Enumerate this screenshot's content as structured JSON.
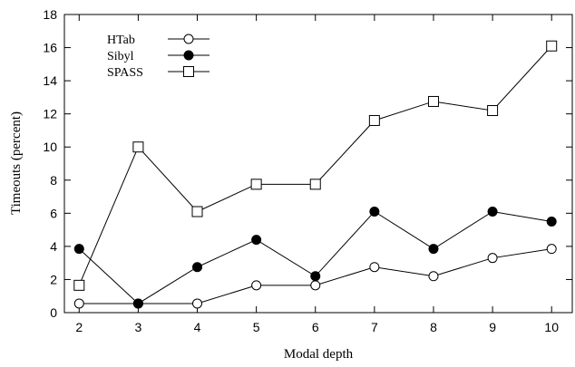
{
  "chart_data": {
    "type": "line",
    "xlabel": "Modal depth",
    "ylabel": "Timeouts (percent)",
    "x": [
      2,
      3,
      4,
      5,
      6,
      7,
      8,
      9,
      10
    ],
    "xlim": [
      1.75,
      10.35
    ],
    "ylim": [
      0,
      18
    ],
    "x_ticks": [
      "2",
      "3",
      "4",
      "5",
      "6",
      "7",
      "8",
      "9",
      "10"
    ],
    "y_ticks": [
      "0",
      "2",
      "4",
      "6",
      "8",
      "10",
      "12",
      "14",
      "16",
      "18"
    ],
    "grid": false,
    "legend_position": "top-left",
    "series": [
      {
        "name": "HTab",
        "marker": "open-circle",
        "values": [
          0.55,
          0.55,
          0.55,
          1.65,
          1.65,
          2.75,
          2.2,
          3.3,
          3.85
        ]
      },
      {
        "name": "Sibyl",
        "marker": "filled-circle",
        "values": [
          3.85,
          0.55,
          2.75,
          4.4,
          2.2,
          6.1,
          3.85,
          6.1,
          5.5
        ]
      },
      {
        "name": "SPASS",
        "marker": "open-square",
        "values": [
          1.65,
          10.0,
          6.1,
          7.75,
          7.75,
          11.6,
          12.75,
          12.2,
          16.1
        ]
      }
    ]
  }
}
